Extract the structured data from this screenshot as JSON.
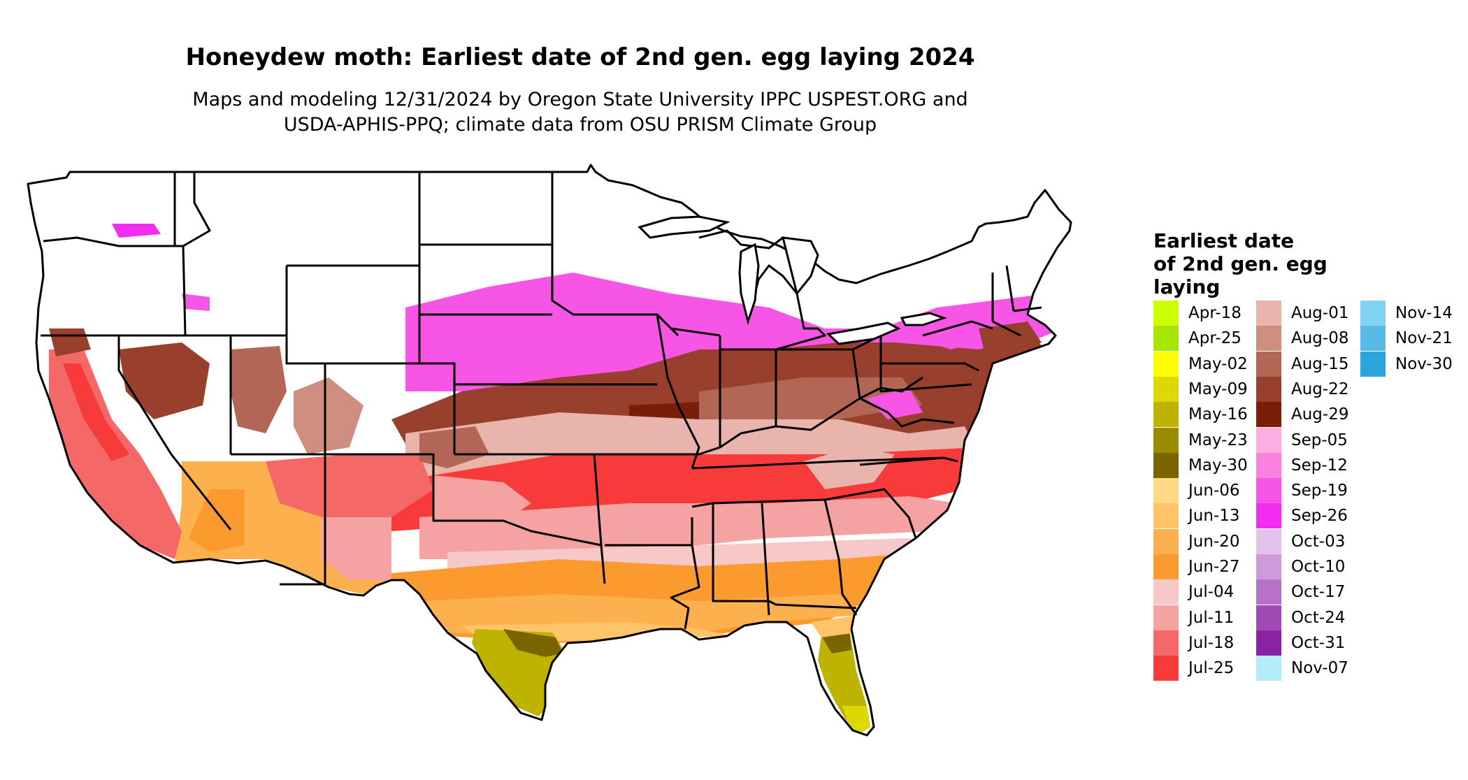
{
  "title": "Honeydew moth: Earliest date of 2nd gen. egg laying 2024",
  "subtitle_line1": "Maps and modeling 12/31/2024 by Oregon State University IPPC USPEST.ORG and",
  "subtitle_line2": "USDA-APHIS-PPQ; climate data from OSU PRISM Climate Group",
  "legend": {
    "title_lines": [
      "Earliest date",
      "of 2nd gen. egg",
      "laying"
    ],
    "columns": [
      [
        {
          "label": "Apr-18",
          "color": "#ccff00"
        },
        {
          "label": "Apr-25",
          "color": "#a6e600"
        },
        {
          "label": "May-02",
          "color": "#ffff00"
        },
        {
          "label": "May-09",
          "color": "#dcd800"
        },
        {
          "label": "May-16",
          "color": "#bdb300"
        },
        {
          "label": "May-23",
          "color": "#9a8c00"
        },
        {
          "label": "May-30",
          "color": "#7a6400"
        },
        {
          "label": "Jun-06",
          "color": "#ffd98a"
        },
        {
          "label": "Jun-13",
          "color": "#ffc46a"
        },
        {
          "label": "Jun-20",
          "color": "#fdb04e"
        },
        {
          "label": "Jun-27",
          "color": "#fb9a2e"
        },
        {
          "label": "Jul-04",
          "color": "#f6c8c8"
        },
        {
          "label": "Jul-11",
          "color": "#f4a2a2"
        },
        {
          "label": "Jul-18",
          "color": "#f56868"
        },
        {
          "label": "Jul-25",
          "color": "#f73a3a"
        }
      ],
      [
        {
          "label": "Aug-01",
          "color": "#e8b4ab"
        },
        {
          "label": "Aug-08",
          "color": "#d08e80"
        },
        {
          "label": "Aug-15",
          "color": "#b36655"
        },
        {
          "label": "Aug-22",
          "color": "#98402d"
        },
        {
          "label": "Aug-29",
          "color": "#7b1e08"
        },
        {
          "label": "Sep-05",
          "color": "#fbaee0"
        },
        {
          "label": "Sep-12",
          "color": "#fa82de"
        },
        {
          "label": "Sep-19",
          "color": "#f655e5"
        },
        {
          "label": "Sep-26",
          "color": "#f22cf0"
        },
        {
          "label": "Oct-03",
          "color": "#e2c3ea"
        },
        {
          "label": "Oct-10",
          "color": "#cf9ada"
        },
        {
          "label": "Oct-17",
          "color": "#b772c8"
        },
        {
          "label": "Oct-24",
          "color": "#a04ab8"
        },
        {
          "label": "Oct-31",
          "color": "#8a22a6"
        },
        {
          "label": "Nov-07",
          "color": "#b4ecfb"
        }
      ],
      [
        {
          "label": "Nov-14",
          "color": "#82d3f1"
        },
        {
          "label": "Nov-21",
          "color": "#58bbe6"
        },
        {
          "label": "Nov-30",
          "color": "#2ca5db"
        }
      ]
    ]
  }
}
